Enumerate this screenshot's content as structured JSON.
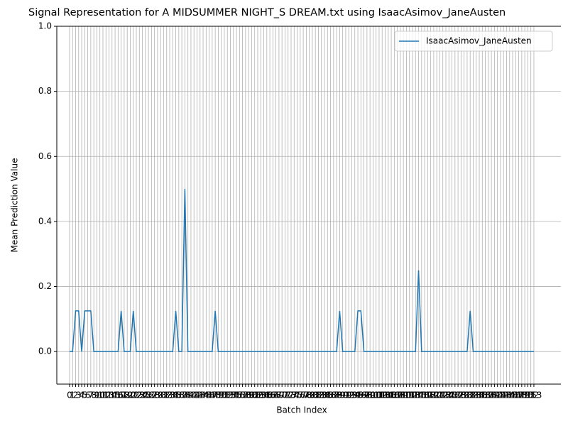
{
  "chart_data": {
    "type": "line",
    "title": "Signal Representation for A MIDSUMMER NIGHT_S DREAM.txt using IsaacAsimov_JaneAusten",
    "xlabel": "Batch Index",
    "ylabel": "Mean Prediction Value",
    "x": [
      0,
      1,
      2,
      3,
      4,
      5,
      6,
      7,
      8,
      9,
      10,
      11,
      12,
      13,
      14,
      15,
      16,
      17,
      18,
      19,
      20,
      21,
      22,
      23,
      24,
      25,
      26,
      27,
      28,
      29,
      30,
      31,
      32,
      33,
      34,
      35,
      36,
      37,
      38,
      39,
      40,
      41,
      42,
      43,
      44,
      45,
      46,
      47,
      48,
      49,
      50,
      51,
      52,
      53,
      54,
      55,
      56,
      57,
      58,
      59,
      60,
      61,
      62,
      63,
      64,
      65,
      66,
      67,
      68,
      69,
      70,
      71,
      72,
      73,
      74,
      75,
      76,
      77,
      78,
      79,
      80,
      81,
      82,
      83,
      84,
      85,
      86,
      87,
      88,
      89,
      90,
      91,
      92,
      93,
      94,
      95,
      96,
      97,
      98,
      99,
      100,
      101,
      102,
      103,
      104,
      105,
      106,
      107,
      108,
      109,
      110,
      111,
      112,
      113,
      114,
      115,
      116,
      117,
      118,
      119,
      120,
      121,
      122,
      123,
      124,
      125,
      126,
      127,
      128,
      129,
      130,
      131,
      132,
      133,
      134,
      135,
      136,
      137,
      138,
      139,
      140,
      141,
      142,
      143,
      144,
      145,
      146,
      147,
      148,
      149,
      150,
      151,
      152,
      153
    ],
    "series": [
      {
        "name": "IsaacAsimov_JaneAusten",
        "color": "#1f77b4",
        "values": [
          0,
          0,
          0.125,
          0.125,
          0,
          0.125,
          0.125,
          0.125,
          0,
          0,
          0,
          0,
          0,
          0,
          0,
          0,
          0,
          0.125,
          0,
          0,
          0,
          0.125,
          0,
          0,
          0,
          0,
          0,
          0,
          0,
          0,
          0,
          0,
          0,
          0,
          0,
          0.125,
          0,
          0,
          0.5,
          0,
          0,
          0,
          0,
          0,
          0,
          0,
          0,
          0,
          0.125,
          0,
          0,
          0,
          0,
          0,
          0,
          0,
          0,
          0,
          0,
          0,
          0,
          0,
          0,
          0,
          0,
          0,
          0,
          0,
          0,
          0,
          0,
          0,
          0,
          0,
          0,
          0,
          0,
          0,
          0,
          0,
          0,
          0,
          0,
          0,
          0,
          0,
          0,
          0,
          0,
          0.125,
          0,
          0,
          0,
          0,
          0,
          0.125,
          0.125,
          0,
          0,
          0,
          0,
          0,
          0,
          0,
          0,
          0,
          0,
          0,
          0,
          0,
          0,
          0,
          0,
          0,
          0,
          0.25,
          0,
          0,
          0,
          0,
          0,
          0,
          0,
          0,
          0,
          0,
          0,
          0,
          0,
          0,
          0,
          0,
          0.125,
          0,
          0,
          0,
          0,
          0,
          0,
          0,
          0,
          0,
          0,
          0,
          0,
          0,
          0,
          0,
          0,
          0,
          0,
          0,
          0,
          0
        ]
      }
    ],
    "xlim": [
      -4.2,
      161.9
    ],
    "xticks": [
      0,
      1,
      2,
      3,
      4,
      5,
      6,
      7,
      8,
      9,
      10,
      11,
      12,
      13,
      14,
      15,
      16,
      17,
      18,
      19,
      20,
      21,
      22,
      23,
      24,
      25,
      26,
      27,
      28,
      29,
      30,
      31,
      32,
      33,
      34,
      35,
      36,
      37,
      38,
      39,
      40,
      41,
      42,
      43,
      44,
      45,
      46,
      47,
      48,
      49,
      50,
      51,
      52,
      53,
      54,
      55,
      56,
      57,
      58,
      59,
      60,
      61,
      62,
      63,
      64,
      65,
      66,
      67,
      68,
      69,
      70,
      71,
      72,
      73,
      74,
      75,
      76,
      77,
      78,
      79,
      80,
      81,
      82,
      83,
      84,
      85,
      86,
      87,
      88,
      89,
      90,
      91,
      92,
      93,
      94,
      95,
      96,
      97,
      98,
      99,
      100,
      101,
      102,
      103,
      104,
      105,
      106,
      107,
      108,
      109,
      110,
      111,
      112,
      113,
      114,
      115,
      116,
      117,
      118,
      119,
      120,
      121,
      122,
      123,
      124,
      125,
      126,
      127,
      128,
      129,
      130,
      131,
      132,
      133,
      134,
      135,
      136,
      137,
      138,
      139,
      140,
      141,
      142,
      143,
      144,
      145,
      146,
      147,
      148,
      149,
      150,
      151,
      152,
      153
    ],
    "ylim": [
      -0.1,
      1.0
    ],
    "yticks": [
      {
        "value": 0,
        "label": "0.0"
      },
      {
        "value": 0.2,
        "label": "0.2"
      },
      {
        "value": 0.4,
        "label": "0.4"
      },
      {
        "value": 0.6,
        "label": "0.6"
      },
      {
        "value": 0.8,
        "label": "0.8"
      },
      {
        "value": 1.0,
        "label": "1.0"
      }
    ],
    "grid": true,
    "legend": "upper right"
  }
}
